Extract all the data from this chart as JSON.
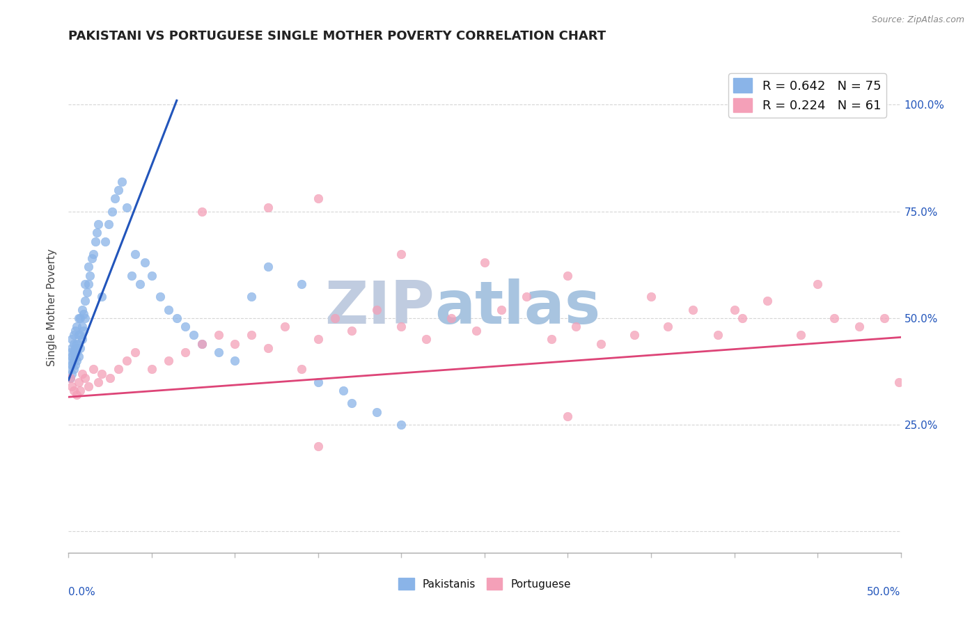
{
  "title": "PAKISTANI VS PORTUGUESE SINGLE MOTHER POVERTY CORRELATION CHART",
  "source": "Source: ZipAtlas.com",
  "ylabel": "Single Mother Poverty",
  "xlim": [
    0.0,
    0.5
  ],
  "ylim": [
    -0.05,
    1.1
  ],
  "yticks": [
    0.0,
    0.25,
    0.5,
    0.75,
    1.0
  ],
  "ytick_labels": [
    "",
    "25.0%",
    "50.0%",
    "75.0%",
    "100.0%"
  ],
  "xtick_positions": [
    0.0,
    0.05,
    0.1,
    0.15,
    0.2,
    0.25,
    0.3,
    0.35,
    0.4,
    0.45,
    0.5
  ],
  "blue_color": "#8ab4e8",
  "pink_color": "#f4a0b8",
  "blue_line_color": "#2255bb",
  "pink_line_color": "#dd4477",
  "legend_r1_text": "R = 0.642   N = 75",
  "legend_r2_text": "R = 0.224   N = 61",
  "watermark": "ZIPatlas",
  "watermark_color_zip": "#c0cce0",
  "watermark_color_atlas": "#a8c4e0",
  "background_color": "#ffffff",
  "title_fontsize": 13,
  "label_fontsize": 11,
  "tick_fontsize": 11,
  "blue_line_x": [
    0.0,
    0.065
  ],
  "blue_line_y": [
    0.355,
    1.01
  ],
  "pink_line_x": [
    0.0,
    0.5
  ],
  "pink_line_y": [
    0.315,
    0.455
  ],
  "blue_x": [
    0.001,
    0.001,
    0.001,
    0.001,
    0.002,
    0.002,
    0.002,
    0.002,
    0.002,
    0.003,
    0.003,
    0.003,
    0.003,
    0.003,
    0.004,
    0.004,
    0.004,
    0.004,
    0.005,
    0.005,
    0.005,
    0.005,
    0.006,
    0.006,
    0.006,
    0.006,
    0.007,
    0.007,
    0.007,
    0.008,
    0.008,
    0.008,
    0.009,
    0.009,
    0.01,
    0.01,
    0.01,
    0.011,
    0.012,
    0.012,
    0.013,
    0.014,
    0.015,
    0.016,
    0.017,
    0.018,
    0.02,
    0.022,
    0.024,
    0.026,
    0.028,
    0.03,
    0.032,
    0.035,
    0.038,
    0.04,
    0.043,
    0.046,
    0.05,
    0.055,
    0.06,
    0.065,
    0.07,
    0.075,
    0.08,
    0.09,
    0.1,
    0.11,
    0.12,
    0.14,
    0.15,
    0.165,
    0.17,
    0.185,
    0.2
  ],
  "blue_y": [
    0.38,
    0.4,
    0.42,
    0.36,
    0.37,
    0.39,
    0.41,
    0.43,
    0.45,
    0.38,
    0.4,
    0.42,
    0.44,
    0.46,
    0.39,
    0.41,
    0.43,
    0.47,
    0.4,
    0.42,
    0.44,
    0.48,
    0.41,
    0.44,
    0.46,
    0.5,
    0.43,
    0.46,
    0.5,
    0.45,
    0.48,
    0.52,
    0.47,
    0.51,
    0.5,
    0.54,
    0.58,
    0.56,
    0.58,
    0.62,
    0.6,
    0.64,
    0.65,
    0.68,
    0.7,
    0.72,
    0.55,
    0.68,
    0.72,
    0.75,
    0.78,
    0.8,
    0.82,
    0.76,
    0.6,
    0.65,
    0.58,
    0.63,
    0.6,
    0.55,
    0.52,
    0.5,
    0.48,
    0.46,
    0.44,
    0.42,
    0.4,
    0.55,
    0.62,
    0.58,
    0.35,
    0.33,
    0.3,
    0.28,
    0.25
  ],
  "pink_x": [
    0.001,
    0.002,
    0.003,
    0.005,
    0.006,
    0.007,
    0.008,
    0.01,
    0.012,
    0.015,
    0.018,
    0.02,
    0.025,
    0.03,
    0.035,
    0.04,
    0.05,
    0.06,
    0.07,
    0.08,
    0.09,
    0.1,
    0.11,
    0.12,
    0.13,
    0.14,
    0.15,
    0.16,
    0.17,
    0.185,
    0.2,
    0.215,
    0.23,
    0.245,
    0.26,
    0.275,
    0.29,
    0.305,
    0.32,
    0.34,
    0.36,
    0.375,
    0.39,
    0.405,
    0.42,
    0.44,
    0.46,
    0.475,
    0.49,
    0.499,
    0.08,
    0.12,
    0.15,
    0.2,
    0.25,
    0.3,
    0.35,
    0.4,
    0.45,
    0.3,
    0.15
  ],
  "pink_y": [
    0.36,
    0.34,
    0.33,
    0.32,
    0.35,
    0.33,
    0.37,
    0.36,
    0.34,
    0.38,
    0.35,
    0.37,
    0.36,
    0.38,
    0.4,
    0.42,
    0.38,
    0.4,
    0.42,
    0.44,
    0.46,
    0.44,
    0.46,
    0.43,
    0.48,
    0.38,
    0.45,
    0.5,
    0.47,
    0.52,
    0.48,
    0.45,
    0.5,
    0.47,
    0.52,
    0.55,
    0.45,
    0.48,
    0.44,
    0.46,
    0.48,
    0.52,
    0.46,
    0.5,
    0.54,
    0.46,
    0.5,
    0.48,
    0.5,
    0.35,
    0.75,
    0.76,
    0.78,
    0.65,
    0.63,
    0.6,
    0.55,
    0.52,
    0.58,
    0.27,
    0.2
  ]
}
